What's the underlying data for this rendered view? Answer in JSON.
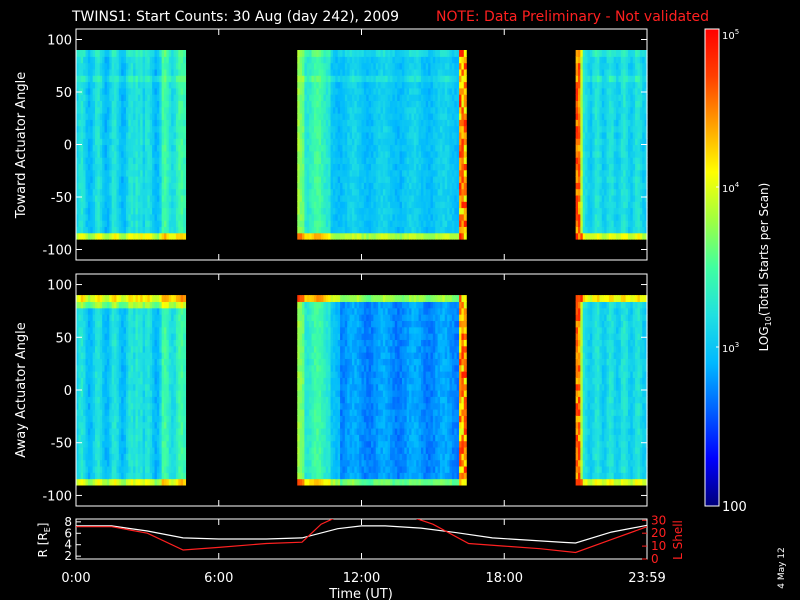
{
  "header": {
    "title": "TWINS1: Start Counts: 30 Aug (day 242), 2009",
    "note": "NOTE: Data Preliminary - Not validated",
    "date_stamp": "4 May 12",
    "note_color": "#ff2020"
  },
  "chart_data": [
    {
      "type": "heatmap",
      "name": "toward",
      "ylabel": "Toward Actuator Angle",
      "ylim": [
        -110,
        110
      ],
      "yticks": [
        "100",
        "50",
        "0",
        "-50",
        "-100"
      ],
      "ytick_values": [
        100,
        50,
        0,
        -50,
        -100
      ],
      "data_ylim": [
        -90,
        90
      ],
      "xlim": [
        0,
        24
      ],
      "data_intervals_ut": [
        [
          0,
          4.6
        ],
        [
          9.3,
          16.4
        ],
        [
          21.0,
          24.0
        ]
      ]
    },
    {
      "type": "heatmap",
      "name": "away",
      "ylabel": "Away Actuator Angle",
      "ylim": [
        -110,
        110
      ],
      "yticks": [
        "100",
        "50",
        "0",
        "-50",
        "-100"
      ],
      "ytick_values": [
        100,
        50,
        0,
        -50,
        -100
      ],
      "data_ylim": [
        -90,
        90
      ],
      "xlim": [
        0,
        24
      ],
      "data_intervals_ut": [
        [
          0,
          4.6
        ],
        [
          9.3,
          16.4
        ],
        [
          21.0,
          24.0
        ]
      ]
    },
    {
      "type": "line",
      "name": "orbit",
      "ylabel_left": "R [R",
      "ylabel_left_sub": "E",
      "ylabel_left_end": "]",
      "ylabel_right": "L Shell",
      "left_yticks": [
        "8",
        "6",
        "4",
        "2"
      ],
      "left_ytick_values": [
        8,
        6,
        4,
        2
      ],
      "right_yticks": [
        "30",
        "20",
        "10",
        "0"
      ],
      "right_ytick_values": [
        30,
        20,
        10,
        0
      ],
      "left_ylim": [
        1.5,
        8.5
      ],
      "right_ylim": [
        0,
        31
      ],
      "series": [
        {
          "color": "#ffffff",
          "x": [
            0,
            1.5,
            3,
            4.5,
            6,
            8,
            9.5,
            11,
            12,
            13,
            14.5,
            16,
            17.5,
            19,
            20.5,
            21,
            22.5,
            24
          ],
          "y": [
            7.3,
            7.3,
            6.4,
            5.2,
            5.0,
            5.0,
            5.2,
            6.8,
            7.3,
            7.3,
            6.9,
            6.1,
            5.2,
            4.8,
            4.4,
            4.3,
            6.2,
            7.4
          ]
        },
        {
          "color": "#ff2020",
          "x": [
            0,
            1.5,
            3,
            4.5,
            6,
            8,
            9.5,
            10.3,
            10.9,
            14.2,
            15.0,
            16.5,
            18,
            19.5,
            21,
            22.5,
            24
          ],
          "y": [
            25,
            25,
            20,
            7,
            9,
            12,
            13,
            27,
            32,
            32,
            27,
            12,
            10,
            8,
            5,
            15,
            25
          ]
        }
      ],
      "xlabel": "Time (UT)",
      "xticks": [
        "0:00",
        "6:00",
        "12:00",
        "18:00",
        "23:59"
      ],
      "xtick_values": [
        0,
        6,
        12,
        18,
        24
      ],
      "xlim": [
        0,
        24
      ]
    }
  ],
  "colorbar": {
    "label_prefix": "LOG",
    "label_sub": "10",
    "label_suffix": "(Total Starts per Scan)",
    "tick_top_base": "10",
    "tick_top_exp": "5",
    "tick_mid_base": "10",
    "tick_mid_exp": "4",
    "tick_low_base": "10",
    "tick_low_exp": "3",
    "tick_bottom": "100",
    "range_log": [
      2,
      5
    ],
    "stops": [
      "#00007a",
      "#0000ff",
      "#0060ff",
      "#00b8ff",
      "#20e0e0",
      "#40ffa0",
      "#a0ff40",
      "#ffff00",
      "#ffa000",
      "#ff4000",
      "#ff0000"
    ]
  }
}
